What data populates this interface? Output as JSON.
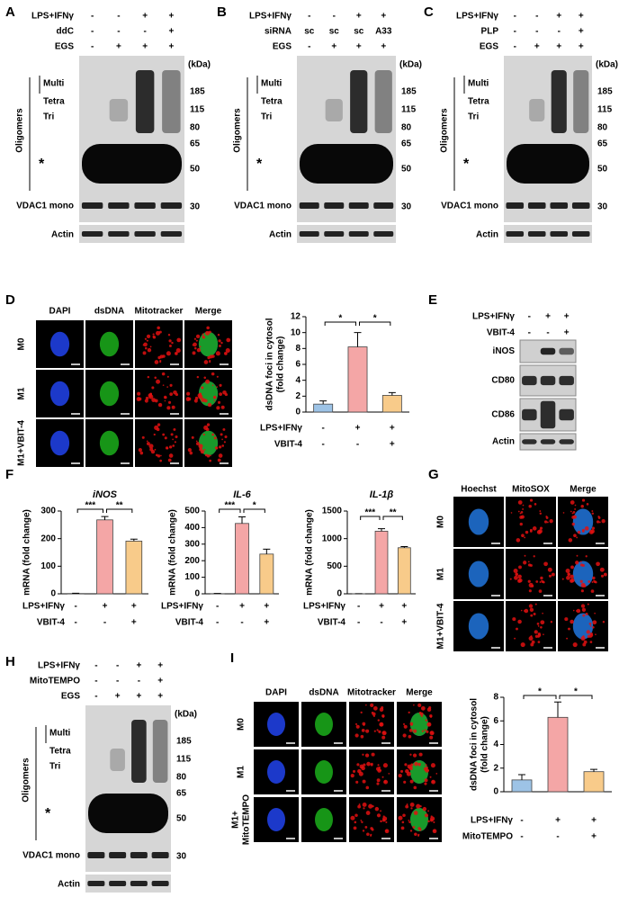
{
  "blots": [
    {
      "label": "A",
      "conditions": [
        {
          "name": "LPS+IFNγ",
          "signs": [
            "-",
            "-",
            "+",
            "+"
          ]
        },
        {
          "name": "ddC",
          "signs": [
            "-",
            "-",
            "-",
            "+"
          ]
        },
        {
          "name": "EGS",
          "signs": [
            "-",
            "+",
            "+",
            "+"
          ]
        }
      ],
      "unit": "(kDa)",
      "markers": [
        185,
        115,
        80,
        65,
        50,
        30
      ],
      "bands": [
        "Multi",
        "Tetra",
        "Tri"
      ],
      "group": "Oligomers",
      "star": "*",
      "mono": "VDAC1 mono",
      "loading": "Actin"
    },
    {
      "label": "B",
      "conditions": [
        {
          "name": "LPS+IFNγ",
          "signs": [
            "-",
            "-",
            "+",
            "+"
          ]
        },
        {
          "name": "siRNA",
          "signs": [
            "sc",
            "sc",
            "sc",
            "A33"
          ]
        },
        {
          "name": "EGS",
          "signs": [
            "-",
            "+",
            "+",
            "+"
          ]
        }
      ],
      "unit": "(kDa)",
      "markers": [
        185,
        115,
        80,
        65,
        50,
        30
      ],
      "bands": [
        "Multi",
        "Tetra",
        "Tri"
      ],
      "group": "Oligomers",
      "star": "*",
      "mono": "VDAC1 mono",
      "loading": "Actin"
    },
    {
      "label": "C",
      "conditions": [
        {
          "name": "LPS+IFNγ",
          "signs": [
            "-",
            "-",
            "+",
            "+"
          ]
        },
        {
          "name": "PLP",
          "signs": [
            "-",
            "-",
            "-",
            "+"
          ]
        },
        {
          "name": "EGS",
          "signs": [
            "-",
            "+",
            "+",
            "+"
          ]
        }
      ],
      "unit": "(kDa)",
      "markers": [
        185,
        115,
        80,
        65,
        50,
        30
      ],
      "bands": [
        "Multi",
        "Tetra",
        "Tri"
      ],
      "group": "Oligomers",
      "star": "*",
      "mono": "VDAC1 mono",
      "loading": "Actin"
    },
    {
      "label": "H",
      "conditions": [
        {
          "name": "LPS+IFNγ",
          "signs": [
            "-",
            "-",
            "+",
            "+"
          ]
        },
        {
          "name": "MitoTEMPO",
          "signs": [
            "-",
            "-",
            "-",
            "+"
          ]
        },
        {
          "name": "EGS",
          "signs": [
            "-",
            "+",
            "+",
            "+"
          ]
        }
      ],
      "unit": "(kDa)",
      "markers": [
        185,
        115,
        80,
        65,
        50,
        30
      ],
      "bands": [
        "Multi",
        "Tetra",
        "Tri"
      ],
      "group": "Oligomers",
      "star": "*",
      "mono": "VDAC1 mono",
      "loading": "Actin"
    }
  ],
  "blot_e": {
    "label": "E",
    "conditions": [
      {
        "name": "LPS+IFNγ",
        "signs": [
          "-",
          "+",
          "+"
        ]
      },
      {
        "name": "VBIT-4",
        "signs": [
          "-",
          "-",
          "+"
        ]
      }
    ],
    "rows": [
      "iNOS",
      "CD80",
      "CD86",
      "Actin"
    ]
  },
  "images": [
    {
      "label": "D",
      "channels": [
        "DAPI",
        "dsDNA",
        "Mitotracker",
        "Merge"
      ],
      "colors": [
        "#1f3fe0",
        "#1aa51a",
        "#e01010",
        "#000000"
      ],
      "rows": [
        [
          "M0"
        ],
        [
          "M1"
        ],
        [
          "M1+VBIT-4"
        ]
      ]
    },
    {
      "label": "G",
      "channels": [
        "Hoechst",
        "MitoSOX",
        "Merge"
      ],
      "colors": [
        "#1f6fd0",
        "#e01010",
        "#000000"
      ],
      "rows": [
        [
          "M0"
        ],
        [
          "M1"
        ],
        [
          "M1+VBIT-4"
        ]
      ]
    },
    {
      "label": "I",
      "channels": [
        "DAPI",
        "dsDNA",
        "Mitotracker",
        "Merge"
      ],
      "colors": [
        "#1f3fe0",
        "#1aa51a",
        "#e01010",
        "#000000"
      ],
      "rows": [
        [
          "M0"
        ],
        [
          "M1"
        ],
        [
          "M1+",
          "MitoTEMPO"
        ]
      ]
    }
  ],
  "chart_data": [
    {
      "type": "bar",
      "ylabel": [
        "dsDNA foci in cytosol",
        "(fold change)"
      ],
      "values": [
        1,
        8.2,
        2.1
      ],
      "errors": [
        0.4,
        1.8,
        0.35
      ],
      "colors": [
        "#9dc3e6",
        "#f4a6a6",
        "#f8cb8a"
      ],
      "ylim": [
        0,
        12
      ],
      "yticks": [
        0,
        2,
        4,
        6,
        8,
        10,
        12
      ],
      "annotations": [
        "*",
        "*"
      ],
      "conditions": [
        {
          "name": "LPS+IFNγ",
          "signs": [
            "-",
            "+",
            "+"
          ]
        },
        {
          "name": "VBIT-4",
          "signs": [
            "-",
            "-",
            "+"
          ]
        }
      ]
    },
    {
      "type": "bar",
      "panel": "F",
      "title": "iNOS",
      "ylabel": [
        "mRNA (fold change)"
      ],
      "values": [
        1,
        268,
        191
      ],
      "errors": [
        1,
        12,
        7
      ],
      "colors": [
        "#9dc3e6",
        "#f4a6a6",
        "#f8cb8a"
      ],
      "ylim": [
        0,
        300
      ],
      "yticks": [
        0,
        100,
        200,
        300
      ],
      "annotations": [
        "***",
        "**"
      ],
      "conditions": [
        {
          "name": "LPS+IFNγ",
          "signs": [
            "-",
            "+",
            "+"
          ]
        },
        {
          "name": "VBIT-4",
          "signs": [
            "-",
            "-",
            "+"
          ]
        }
      ]
    },
    {
      "type": "bar",
      "title": "IL-6",
      "ylabel": [
        "mRNA (fold change)"
      ],
      "values": [
        1,
        425,
        240
      ],
      "errors": [
        1,
        40,
        30
      ],
      "colors": [
        "#9dc3e6",
        "#f4a6a6",
        "#f8cb8a"
      ],
      "ylim": [
        0,
        500
      ],
      "yticks": [
        0,
        100,
        200,
        300,
        400,
        500
      ],
      "annotations": [
        "***",
        "*"
      ],
      "conditions": [
        {
          "name": "LPS+IFNγ",
          "signs": [
            "-",
            "+",
            "+"
          ]
        },
        {
          "name": "VBIT-4",
          "signs": [
            "-",
            "-",
            "+"
          ]
        }
      ]
    },
    {
      "type": "bar",
      "title": "IL-1β",
      "ylabel": [
        "mRNA (fold change)"
      ],
      "values": [
        1,
        1135,
        835
      ],
      "errors": [
        2,
        45,
        20
      ],
      "colors": [
        "#9dc3e6",
        "#f4a6a6",
        "#f8cb8a"
      ],
      "ylim": [
        0,
        1500
      ],
      "yticks": [
        0,
        500,
        1000,
        1500
      ],
      "annotations": [
        "***",
        "**"
      ],
      "conditions": [
        {
          "name": "LPS+IFNγ",
          "signs": [
            "-",
            "+",
            "+"
          ]
        },
        {
          "name": "VBIT-4",
          "signs": [
            "-",
            "-",
            "+"
          ]
        }
      ]
    },
    {
      "type": "bar",
      "ylabel": [
        "dsDNA foci in cytosol",
        "(fold change)"
      ],
      "values": [
        1,
        6.3,
        1.7
      ],
      "errors": [
        0.45,
        1.3,
        0.2
      ],
      "colors": [
        "#9dc3e6",
        "#f4a6a6",
        "#f8cb8a"
      ],
      "ylim": [
        0,
        8
      ],
      "yticks": [
        0,
        2,
        4,
        6,
        8
      ],
      "annotations": [
        "*",
        "*"
      ],
      "conditions": [
        {
          "name": "LPS+IFNγ",
          "signs": [
            "-",
            "+",
            "+"
          ]
        },
        {
          "name": "MitoTEMPO",
          "signs": [
            "-",
            "-",
            "+"
          ]
        }
      ]
    }
  ]
}
